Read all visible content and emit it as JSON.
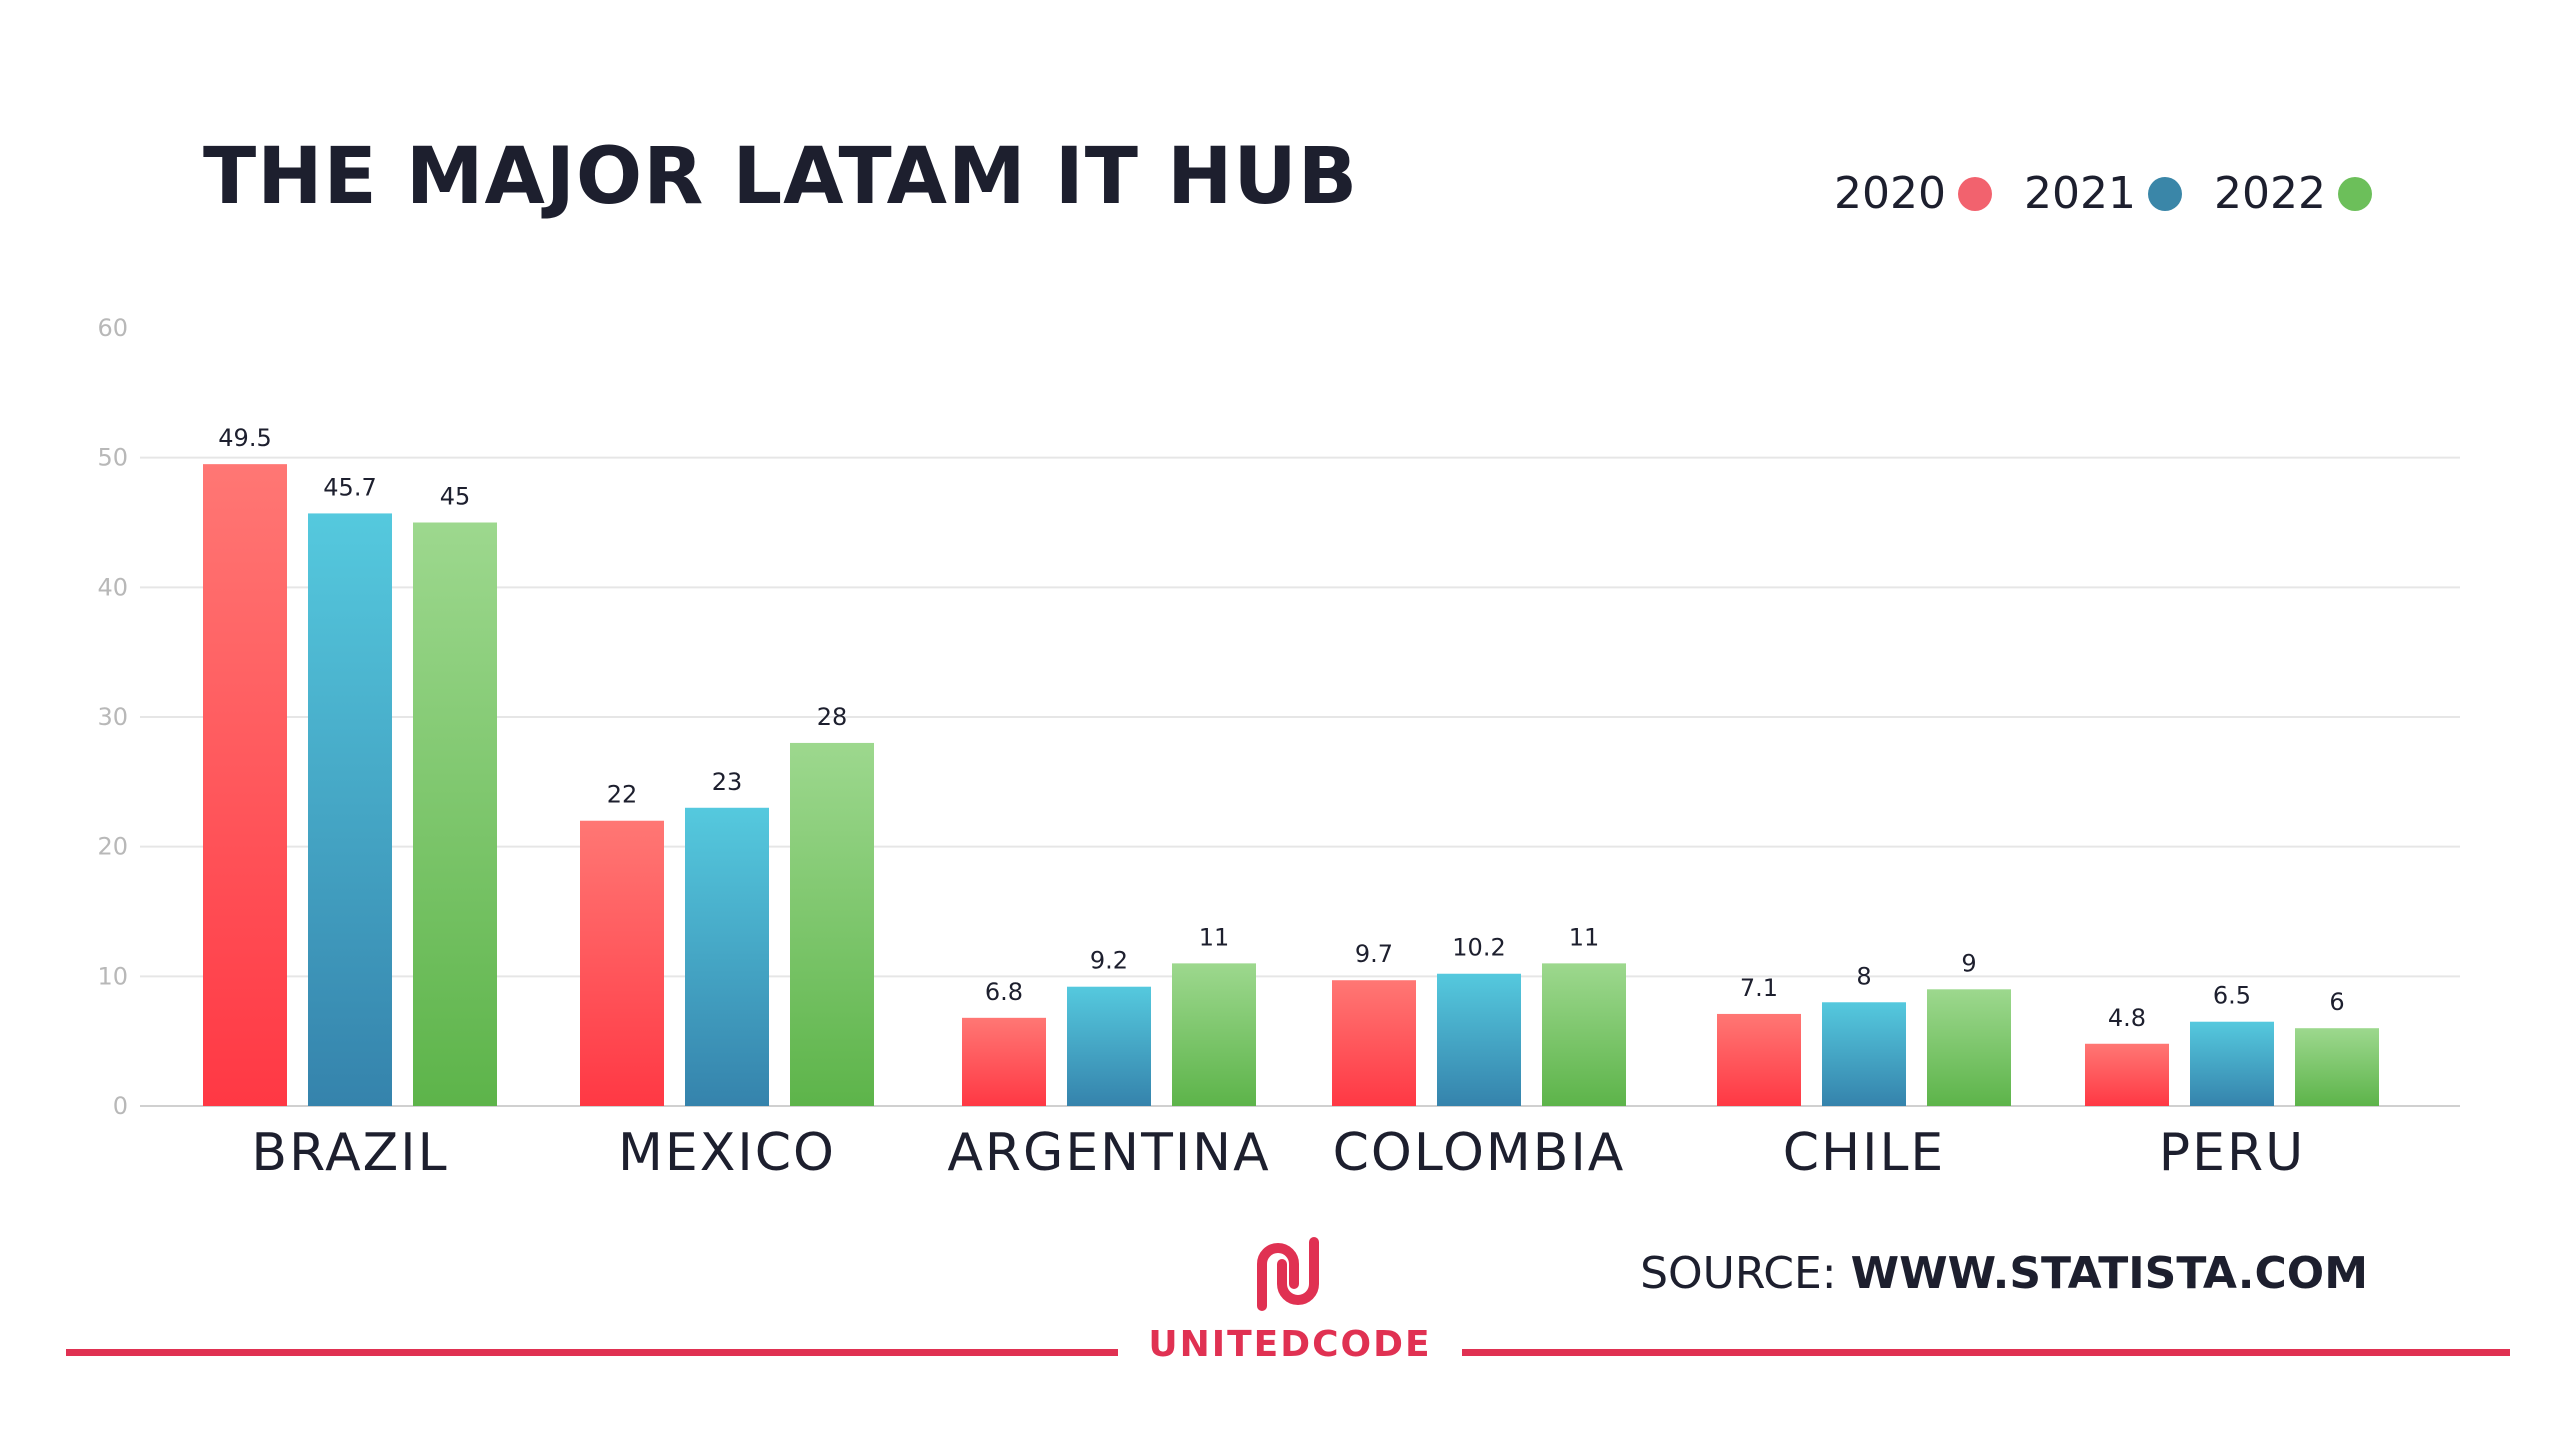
{
  "title": "THE MAJOR LATAM IT HUB",
  "legend": [
    {
      "label": "2020",
      "color": "#f2626e"
    },
    {
      "label": "2021",
      "color": "#3a86a8"
    },
    {
      "label": "2022",
      "color": "#6cbf5a"
    }
  ],
  "source": {
    "prefix": "SOURCE:",
    "value": "WWW.STATISTA.COM"
  },
  "brand": {
    "name": "UNITEDCODE",
    "color": "#e03152"
  },
  "chart_data": {
    "type": "bar",
    "title": "THE MAJOR LATAM IT HUB",
    "xlabel": "",
    "ylabel": "",
    "categories": [
      "BRAZIL",
      "MEXICO",
      "ARGENTINA",
      "COLOMBIA",
      "CHILE",
      "PERU"
    ],
    "series": [
      {
        "name": "2020",
        "values": [
          49.5,
          22,
          6.8,
          9.7,
          7.1,
          4.8
        ],
        "color": "#f2626e"
      },
      {
        "name": "2021",
        "values": [
          45.7,
          23,
          9.2,
          10.2,
          8,
          6.5
        ],
        "color": "#3a86a8"
      },
      {
        "name": "2022",
        "values": [
          45,
          28,
          11,
          11,
          9,
          6
        ],
        "color": "#6cbf5a"
      }
    ],
    "ylim": [
      0,
      60
    ],
    "yticks": [
      0,
      10,
      20,
      30,
      40,
      50,
      60
    ],
    "grid": true,
    "legend": "top-right"
  }
}
